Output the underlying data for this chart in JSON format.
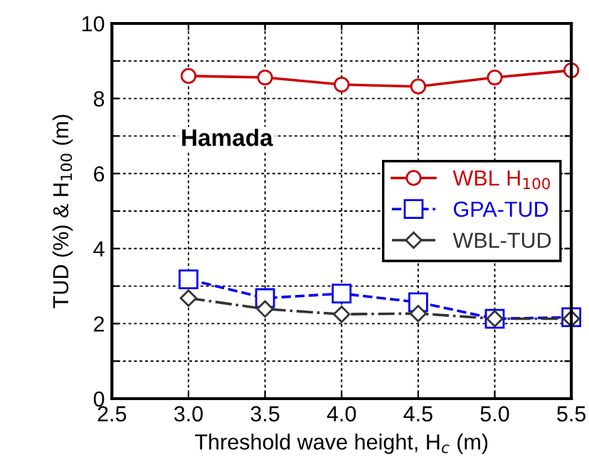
{
  "chart_data": {
    "type": "line",
    "xlabel": "Threshold wave height, H$_{c}$ (m)",
    "ylabel": "TUD (%) & H$_{100}$ (m)",
    "annotations": [
      "Hamada"
    ],
    "x": [
      3.0,
      3.5,
      4.0,
      4.5,
      5.0,
      5.5
    ],
    "series": [
      {
        "name": "WBL H$_{100}$",
        "color": "#cc0000",
        "values": [
          8.6,
          8.56,
          8.37,
          8.32,
          8.56,
          8.75
        ],
        "marker": "circle",
        "line_style": "solid"
      },
      {
        "name": "GPA-TUD",
        "color": "#0000ee",
        "values": [
          3.18,
          2.68,
          2.8,
          2.57,
          2.13,
          2.17
        ],
        "marker": "square",
        "line_style": "dashed"
      },
      {
        "name": "WBL-TUD",
        "color": "#333333",
        "values": [
          2.68,
          2.39,
          2.25,
          2.27,
          2.13,
          2.13
        ],
        "marker": "diamond",
        "line_style": "dashdot"
      }
    ],
    "xlim": [
      2.5,
      5.5
    ],
    "xticks": [
      {
        "value": 2.5,
        "label": "2.5"
      },
      {
        "value": 3.0,
        "label": "3.0"
      },
      {
        "value": 3.5,
        "label": "3.5"
      },
      {
        "value": 4.0,
        "label": "4.0"
      },
      {
        "value": 4.5,
        "label": "4.5"
      },
      {
        "value": 5.0,
        "label": "5.0"
      },
      {
        "value": 5.5,
        "label": "5.5"
      }
    ],
    "ylim": [
      0,
      10
    ],
    "yticks": [
      0,
      {
        "value": 1,
        "label": null
      },
      2,
      {
        "value": 3,
        "label": null
      },
      4,
      {
        "value": 5,
        "label": null
      },
      6,
      {
        "value": 7,
        "label": null
      },
      8,
      {
        "value": 9,
        "label": null
      },
      10
    ],
    "grid": true,
    "legend": "center right"
  }
}
